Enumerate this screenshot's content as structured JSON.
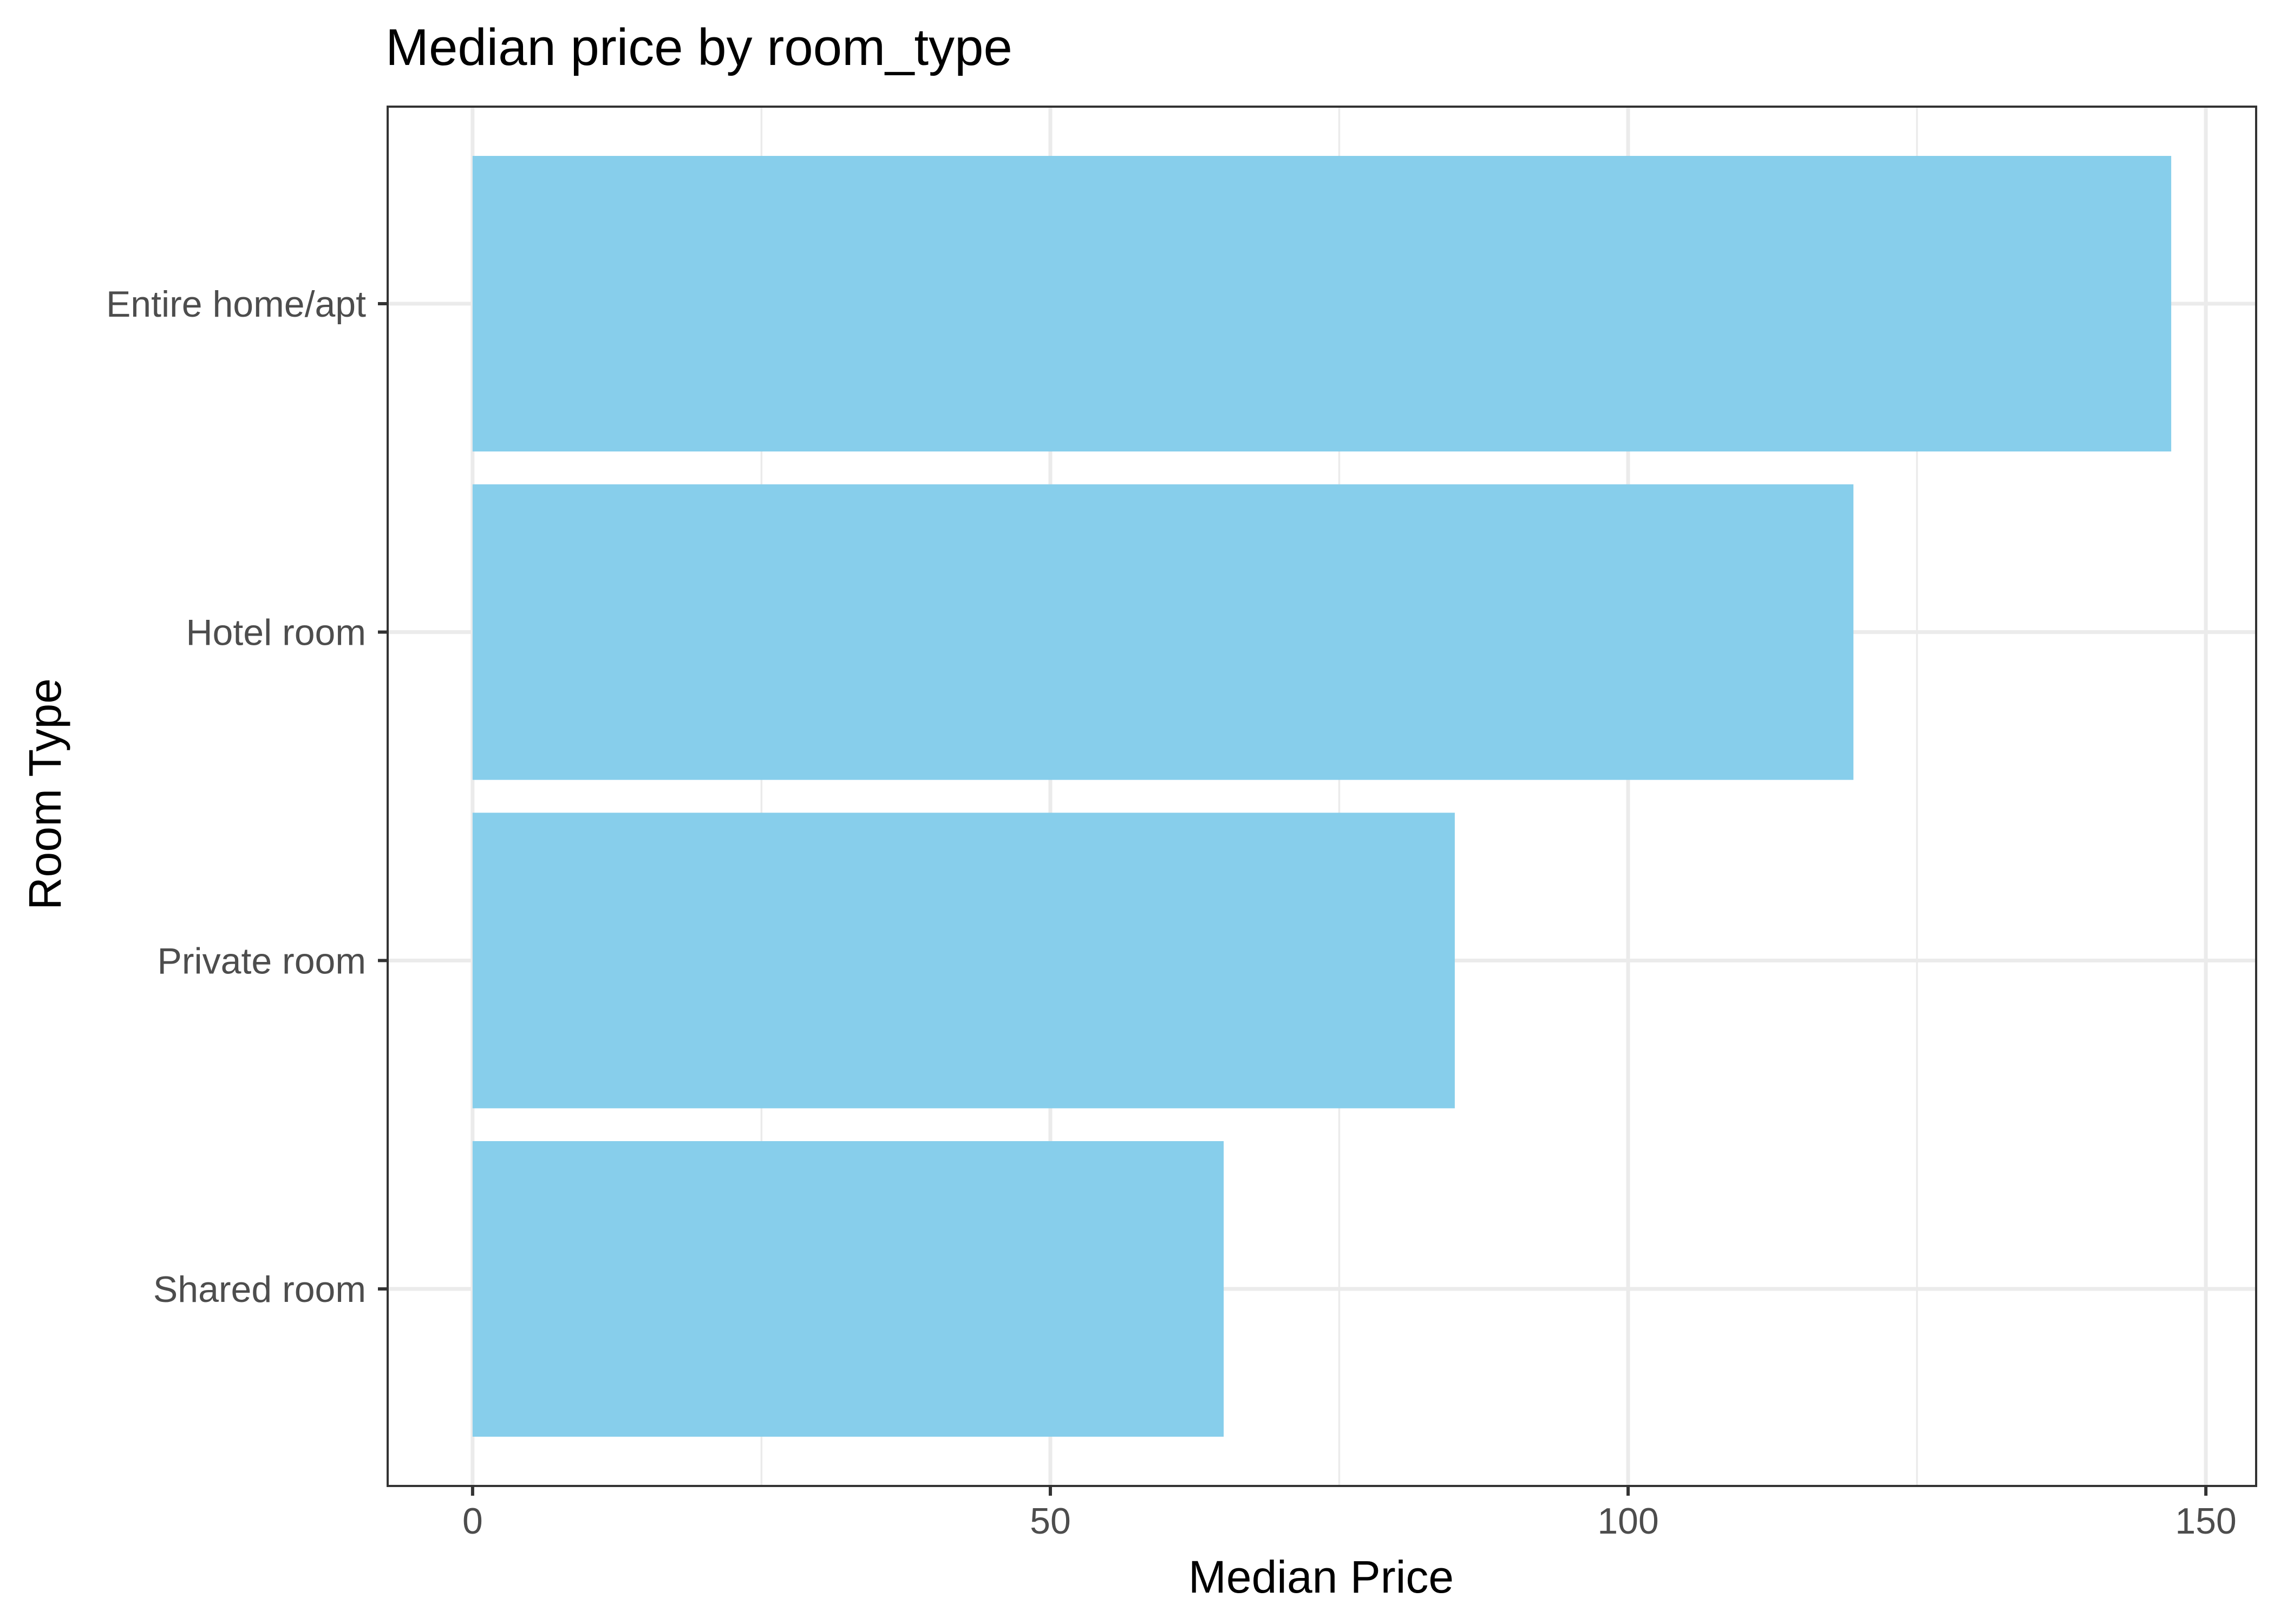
{
  "chart_data": {
    "type": "bar",
    "orientation": "horizontal",
    "title": "Median price by room_type",
    "xlabel": "Median Price",
    "ylabel": "Room Type",
    "categories": [
      "Entire home/apt",
      "Hotel room",
      "Private room",
      "Shared room"
    ],
    "values": [
      147,
      119.5,
      85,
      65
    ],
    "xlim": [
      -7.35,
      154.35
    ],
    "xticks": [
      0,
      50,
      100,
      150
    ],
    "xtick_labels": [
      "0",
      "50",
      "100",
      "150"
    ],
    "grid": true,
    "bar_color": "#87CEEB"
  }
}
